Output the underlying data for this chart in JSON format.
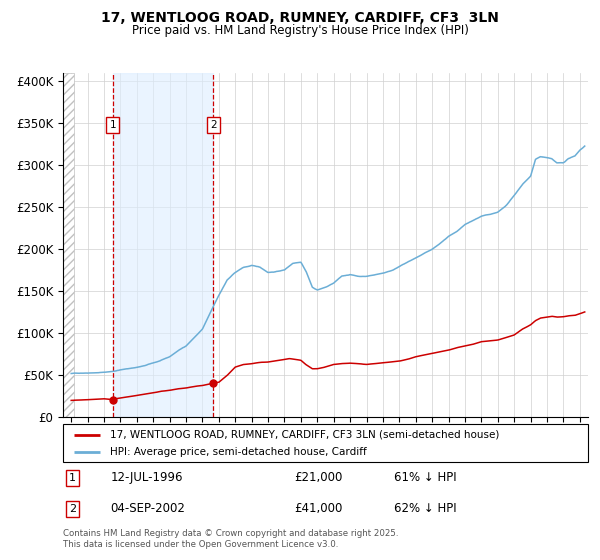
{
  "title": "17, WENTLOOG ROAD, RUMNEY, CARDIFF, CF3  3LN",
  "subtitle": "Price paid vs. HM Land Registry's House Price Index (HPI)",
  "legend_line1": "17, WENTLOOG ROAD, RUMNEY, CARDIFF, CF3 3LN (semi-detached house)",
  "legend_line2": "HPI: Average price, semi-detached house, Cardiff",
  "annotation1_date": "12-JUL-1996",
  "annotation1_price": "£21,000",
  "annotation1_hpi": "61% ↓ HPI",
  "annotation2_date": "04-SEP-2002",
  "annotation2_price": "£41,000",
  "annotation2_hpi": "62% ↓ HPI",
  "footnote": "Contains HM Land Registry data © Crown copyright and database right 2025.\nThis data is licensed under the Open Government Licence v3.0.",
  "hpi_color": "#6baed6",
  "price_color": "#cc0000",
  "marker_color": "#cc0000",
  "vline_color": "#cc0000",
  "shading_color": "#ddeeff",
  "ylim": [
    0,
    410000
  ],
  "yticks": [
    0,
    50000,
    100000,
    150000,
    200000,
    250000,
    300000,
    350000,
    400000
  ],
  "sale1_x": 1996.53,
  "sale1_y": 21000,
  "sale2_x": 2002.67,
  "sale2_y": 41000,
  "xmin": 1993.5,
  "xmax": 2025.5,
  "hatch_end": 1994.2
}
